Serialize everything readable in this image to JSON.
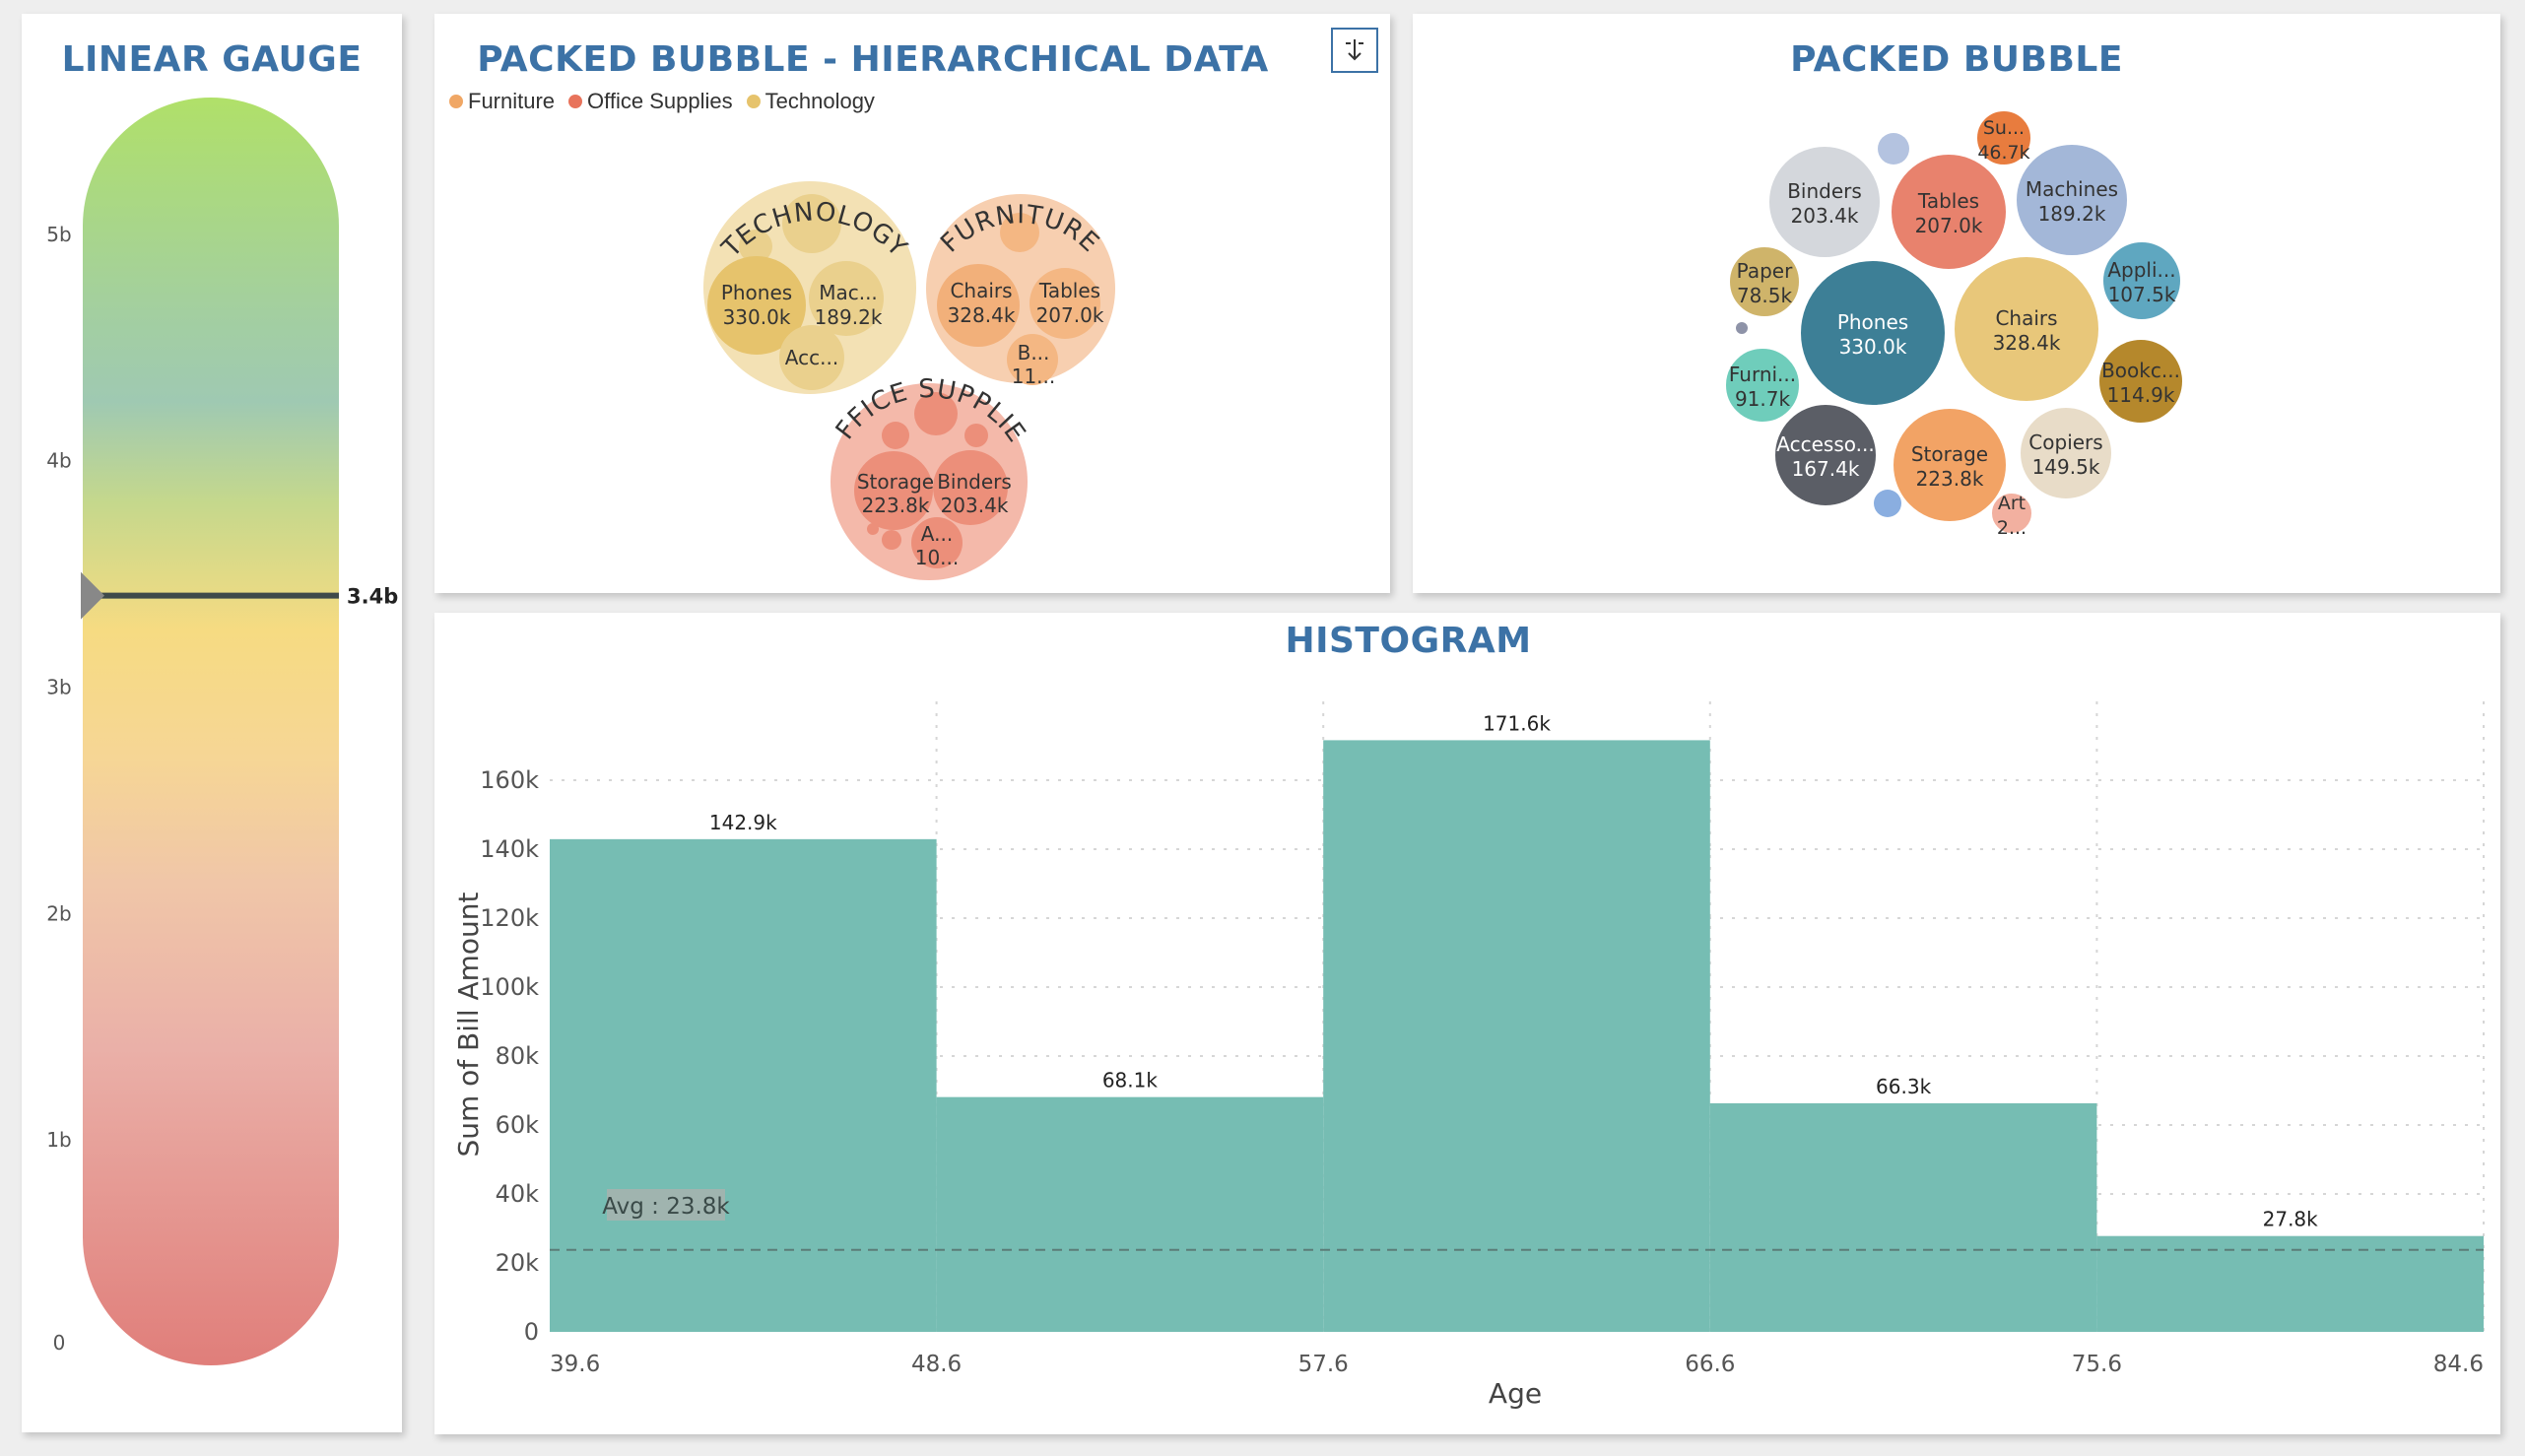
{
  "gauge": {
    "title": "LINEAR GAUGE",
    "value_label": "3.4b",
    "value": 3.4,
    "max": 5.6,
    "ticks": [
      {
        "v": 0,
        "label": "0"
      },
      {
        "v": 1,
        "label": "1b"
      },
      {
        "v": 2,
        "label": "2b"
      },
      {
        "v": 3,
        "label": "3b"
      },
      {
        "v": 4,
        "label": "4b"
      },
      {
        "v": 5,
        "label": "5b"
      }
    ]
  },
  "hier": {
    "title": "PACKED BUBBLE - HIERARCHICAL DATA",
    "legend": [
      {
        "label": "Furniture",
        "color": "#f0a765"
      },
      {
        "label": "Office Supplies",
        "color": "#e8735b"
      },
      {
        "label": "Technology",
        "color": "#e6c36c"
      }
    ],
    "groups": [
      {
        "name": "TECHNOLOGY",
        "children": [
          {
            "name": "Phones",
            "value": "330.0k"
          },
          {
            "name": "Mac...",
            "value": "189.2k"
          },
          {
            "name": "Acc...",
            "value": ""
          }
        ]
      },
      {
        "name": "FURNITURE",
        "children": [
          {
            "name": "Chairs",
            "value": "328.4k"
          },
          {
            "name": "Tables",
            "value": "207.0k"
          },
          {
            "name": "B...",
            "value": "11..."
          }
        ]
      },
      {
        "name": "OFFICE SUPPLIES",
        "children": [
          {
            "name": "Storage",
            "value": "223.8k"
          },
          {
            "name": "Binders",
            "value": "203.4k"
          },
          {
            "name": "A...",
            "value": "10..."
          }
        ]
      }
    ]
  },
  "pack": {
    "title": "PACKED BUBBLE",
    "bubbles": [
      {
        "name": "Phones",
        "value": "330.0k",
        "color": "#3d7f96"
      },
      {
        "name": "Chairs",
        "value": "328.4k",
        "color": "#e8c77a"
      },
      {
        "name": "Storage",
        "value": "223.8k",
        "color": "#f2a365"
      },
      {
        "name": "Tables",
        "value": "207.0k",
        "color": "#e8826d"
      },
      {
        "name": "Binders",
        "value": "203.4k",
        "color": "#d4d7dc"
      },
      {
        "name": "Machines",
        "value": "189.2k",
        "color": "#a3b7d8"
      },
      {
        "name": "Accesso...",
        "value": "167.4k",
        "color": "#5b5e66"
      },
      {
        "name": "Copiers",
        "value": "149.5k",
        "color": "#e8dcc8"
      },
      {
        "name": "Bookc...",
        "value": "114.9k",
        "color": "#b5882c"
      },
      {
        "name": "Appli...",
        "value": "107.5k",
        "color": "#5fa7c0"
      },
      {
        "name": "Furni...",
        "value": "91.7k",
        "color": "#6fcdbb"
      },
      {
        "name": "Paper",
        "value": "78.5k",
        "color": "#cfb46a"
      },
      {
        "name": "Su...",
        "value": "46.7k",
        "color": "#e87c3e"
      },
      {
        "name": "Art",
        "value": "2...",
        "color": "#f2b0a0"
      }
    ]
  },
  "hist": {
    "title": "HISTOGRAM",
    "avg_label": "Avg : 23.8k"
  },
  "chart_data": {
    "type": "bar",
    "title": "HISTOGRAM",
    "xlabel": "Age",
    "ylabel": "Sum of Bill Amount",
    "bin_edges": [
      39.6,
      48.6,
      57.6,
      66.6,
      75.6,
      84.6
    ],
    "x_tick_labels": [
      "39.6",
      "48.6",
      "57.6",
      "66.6",
      "75.6",
      "84.6"
    ],
    "values": [
      142900,
      68100,
      171600,
      66300,
      27800
    ],
    "value_labels": [
      "142.9k",
      "68.1k",
      "171.6k",
      "66.3k",
      "27.8k"
    ],
    "ylim": [
      0,
      180000
    ],
    "y_ticks": [
      0,
      20000,
      40000,
      60000,
      80000,
      100000,
      120000,
      140000,
      160000
    ],
    "y_tick_labels": [
      "0",
      "20k",
      "40k",
      "60k",
      "80k",
      "100k",
      "120k",
      "140k",
      "160k"
    ],
    "average": 23800,
    "bar_color": "#76bdb3",
    "grid": true
  }
}
